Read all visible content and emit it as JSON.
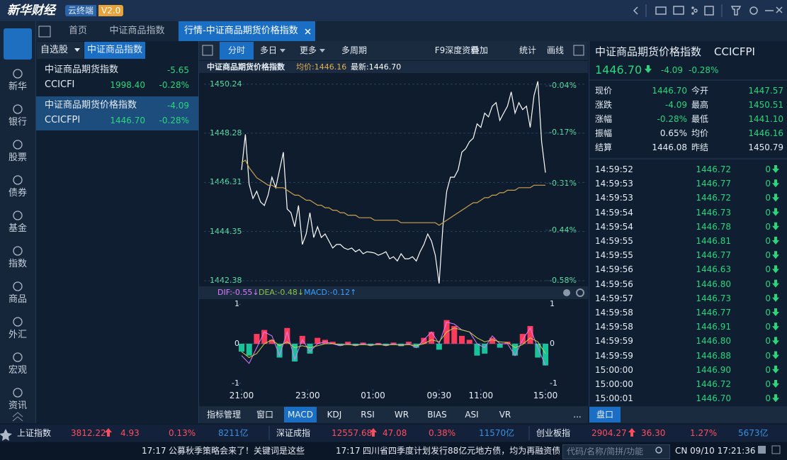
{
  "header": {
    "logo": "新华财经",
    "badge": "云终端",
    "version": "V2.0"
  },
  "tabs": [
    "首页",
    "中证商品指数",
    "行情-中证商品期货价格指数"
  ],
  "nav": {
    "logo": "新华社",
    "logo_sub": "XINHUA NEWS",
    "items": [
      "新华",
      "银行",
      "股票",
      "债券",
      "基金",
      "指数",
      "商品",
      "外汇",
      "宏观",
      "资讯"
    ]
  },
  "watchlist": {
    "tabs": [
      "自选股",
      "中证商品指数"
    ],
    "items": [
      {
        "name": "中证商品期货指数",
        "change": "-5.65",
        "code": "CCICFI",
        "price": "1998.40",
        "pct": "-0.28%"
      },
      {
        "name": "中证商品期货价格指数",
        "change": "-4.09",
        "code": "CCICFPI",
        "price": "1446.70",
        "pct": "-0.28%"
      }
    ]
  },
  "toolbar": [
    "分时",
    "多日",
    "更多",
    "多周期",
    "F9深度资料",
    "叠加",
    "统计",
    "画线"
  ],
  "chart_data": [
    {
      "type": "line",
      "title": "中证商品期货价格指数",
      "annotations": [
        {
          "text": "均价:1446.16",
          "color": "#e0b050"
        },
        {
          "text": "最新:1446.70",
          "color": "#ffffff"
        }
      ],
      "xlim": [
        0,
        80
      ],
      "ylim": [
        1442.1,
        1450.6
      ],
      "yticks": [
        1450.24,
        1448.28,
        1446.31,
        1444.35,
        1442.38
      ],
      "y2lim": [
        -0.6,
        -0.01
      ],
      "y2ticks": [
        {
          "value": -0.04,
          "label": "-0.04%"
        },
        {
          "value": -0.17,
          "label": "-0.17%"
        },
        {
          "value": -0.31,
          "label": "-0.31%"
        },
        {
          "value": -0.44,
          "label": "-0.44%"
        },
        {
          "value": -0.58,
          "label": "-0.58%"
        }
      ],
      "tick_color": "#5ee0a0",
      "grid": true,
      "series": [
        {
          "color": "#ffffff",
          "values": [
            1446.81,
            1448.23,
            1446.24,
            1445.67,
            1445.96,
            1445.53,
            1445.39,
            1445.81,
            1446.52,
            1446.1,
            1446.81,
            1447.52,
            1445.25,
            1445.1,
            1444.54,
            1445.39,
            1443.83,
            1444.25,
            1445.1,
            1444.11,
            1444.54,
            1444.11,
            1444.25,
            1443.97,
            1443.69,
            1443.83,
            1443.83,
            1443.69,
            1443.63,
            1443.69,
            1443.54,
            1443.63,
            1443.46,
            1443.54,
            1443.52,
            1443.49,
            1443.4,
            1443.46,
            1443.54,
            1443.26,
            1443.34,
            1443.17,
            1443.46,
            1443.26,
            1443.26,
            1443.34,
            1443.17,
            1443.54,
            1443.83,
            1444.25,
            1443.97,
            1443.4,
            1442.27,
            1444.54,
            1445.96,
            1446.52,
            1446.52,
            1446.81,
            1447.52,
            1447.66,
            1447.94,
            1448.08,
            1448.65,
            1448.51,
            1449.08,
            1448.93,
            1449.36,
            1449.5,
            1448.79,
            1449.08,
            1449.36,
            1449.93,
            1449.08,
            1449.5,
            1449.22,
            1449.36,
            1448.51,
            1449.79,
            1450.35,
            1447.94,
            1446.7
          ]
        },
        {
          "color": "#c9a24e",
          "values": [
            1447.1,
            1447.2,
            1446.9,
            1446.7,
            1446.5,
            1446.4,
            1446.3,
            1446.2,
            1446.2,
            1446.1,
            1446.1,
            1446.1,
            1446.0,
            1445.9,
            1445.8,
            1445.8,
            1445.7,
            1445.6,
            1445.6,
            1445.5,
            1445.4,
            1445.4,
            1445.3,
            1445.3,
            1445.2,
            1445.2,
            1445.1,
            1445.1,
            1445.0,
            1445.0,
            1445.0,
            1444.9,
            1444.9,
            1444.9,
            1444.9,
            1444.8,
            1444.8,
            1444.8,
            1444.8,
            1444.8,
            1444.8,
            1444.8,
            1444.7,
            1444.7,
            1444.7,
            1444.7,
            1444.7,
            1444.7,
            1444.7,
            1444.7,
            1444.7,
            1444.7,
            1444.6,
            1444.7,
            1444.8,
            1444.9,
            1445.0,
            1445.1,
            1445.2,
            1445.3,
            1445.4,
            1445.5,
            1445.5,
            1445.6,
            1445.7,
            1445.7,
            1445.8,
            1445.8,
            1445.9,
            1445.9,
            1446.0,
            1446.0,
            1446.0,
            1446.1,
            1446.1,
            1446.1,
            1446.1,
            1446.2,
            1446.2,
            1446.2,
            1446.2
          ]
        }
      ]
    },
    {
      "type": "macd",
      "annotations": [
        {
          "text": "DIF:-0.55↓",
          "color": "#e07bff"
        },
        {
          "text": "DEA:-0.48↓",
          "color": "#8bc34a"
        },
        {
          "text": "MACD:-0.12↑",
          "color": "#3aa0ff"
        }
      ],
      "xlim": [
        0,
        40
      ],
      "xticks": [
        {
          "value": 0,
          "label": "21:00"
        },
        {
          "value": 8.7,
          "label": "23:00"
        },
        {
          "value": 17.3,
          "label": "01:00"
        },
        {
          "value": 26,
          "label": "09:30"
        },
        {
          "value": 31.5,
          "label": "11:00"
        },
        {
          "value": 40,
          "label": "15:00"
        }
      ],
      "ylim": [
        -1.15,
        1.15
      ],
      "yticks": [
        1,
        0,
        -1
      ],
      "up_color": "#ff3b5c",
      "down_color": "#19c39a",
      "values": [
        -0.2,
        -0.3,
        0.25,
        0.35,
        0.1,
        -0.35,
        0.4,
        -0.45,
        0.2,
        -0.25,
        0.15,
        0.1,
        0.05,
        -0.05,
        0.05,
        -0.05,
        0.03,
        -0.04,
        0.02,
        -0.05,
        0.03,
        -0.06,
        0.05,
        -0.1,
        0.15,
        0.3,
        -0.15,
        0.6,
        0.45,
        0.2,
        0.1,
        -0.3,
        -0.25,
        0.15,
        -0.1,
        0.05,
        -0.3,
        0.25,
        0.45,
        -0.35,
        -0.55
      ],
      "series": [
        {
          "color": "#e07bff",
          "values": [
            -0.3,
            -0.5,
            -0.1,
            0.3,
            0.2,
            -0.3,
            0.3,
            -0.4,
            0.1,
            -0.2,
            0.0,
            0.05,
            0.0,
            -0.05,
            0.0,
            -0.05,
            0.0,
            -0.05,
            0.0,
            -0.05,
            0.0,
            -0.05,
            0.0,
            -0.1,
            0.1,
            0.3,
            0.0,
            0.55,
            0.5,
            0.35,
            0.3,
            0.0,
            -0.1,
            0.2,
            0.0,
            0.0,
            -0.3,
            0.1,
            0.4,
            -0.1,
            -0.55
          ]
        },
        {
          "color": "#c8d04a",
          "values": [
            -0.2,
            -0.35,
            -0.25,
            0.0,
            0.1,
            -0.05,
            0.05,
            -0.1,
            -0.05,
            -0.1,
            -0.05,
            0.0,
            0.0,
            -0.02,
            -0.02,
            -0.03,
            -0.02,
            -0.03,
            -0.02,
            -0.03,
            -0.02,
            -0.03,
            -0.02,
            -0.05,
            0.0,
            0.1,
            0.05,
            0.3,
            0.4,
            0.35,
            0.3,
            0.15,
            0.05,
            0.1,
            0.05,
            0.03,
            -0.1,
            -0.02,
            0.15,
            0.05,
            -0.25
          ]
        }
      ]
    }
  ],
  "indicator_tabs": [
    "指标管理",
    "窗口",
    "MACD",
    "KDJ",
    "RSI",
    "WR",
    "BIAS",
    "ASI",
    "VR",
    "..."
  ],
  "quote": {
    "name": "中证商品期货价格指数",
    "code": "CCICFPI",
    "price": "1446.70",
    "change": "-4.09",
    "pct": "-0.28%",
    "rows": [
      [
        "现价",
        "1446.70",
        "今开",
        "1447.57"
      ],
      [
        "涨跌",
        "-4.09",
        "最高",
        "1450.51"
      ],
      [
        "涨幅",
        "-0.28%",
        "最低",
        "1441.10"
      ],
      [
        "振幅",
        "0.65%",
        "均价",
        "1446.16"
      ],
      [
        "结算",
        "1446.08",
        "昨结",
        "1450.79"
      ]
    ]
  },
  "trades": [
    [
      "14:59:52",
      "1446.72",
      "0"
    ],
    [
      "14:59:53",
      "1446.77",
      "0"
    ],
    [
      "14:59:53",
      "1446.72",
      "0"
    ],
    [
      "14:59:54",
      "1446.73",
      "0"
    ],
    [
      "14:59:54",
      "1446.78",
      "0"
    ],
    [
      "14:59:55",
      "1446.81",
      "0"
    ],
    [
      "14:59:55",
      "1446.77",
      "0"
    ],
    [
      "14:59:56",
      "1446.63",
      "0"
    ],
    [
      "14:59:56",
      "1446.80",
      "0"
    ],
    [
      "14:59:57",
      "1446.73",
      "0"
    ],
    [
      "14:59:58",
      "1446.77",
      "0"
    ],
    [
      "14:59:58",
      "1446.91",
      "0"
    ],
    [
      "14:59:59",
      "1446.80",
      "0"
    ],
    [
      "14:59:59",
      "1446.88",
      "0"
    ],
    [
      "15:00:00",
      "1446.90",
      "0"
    ],
    [
      "15:00:00",
      "1446.72",
      "0"
    ],
    [
      "15:00:01",
      "1446.70",
      "0"
    ]
  ],
  "right_tab": "盘口",
  "indices": [
    {
      "name": "上证指数",
      "price": "3812.22",
      "change": "4.93",
      "pct": "0.13%",
      "volume": "8211亿"
    },
    {
      "name": "深证成指",
      "price": "12557.68",
      "change": "47.08",
      "pct": "0.38%",
      "volume": "11570亿"
    },
    {
      "name": "创业板指",
      "price": "2904.27",
      "change": "36.30",
      "pct": "1.27%",
      "volume": "5673亿"
    }
  ],
  "news": [
    {
      "time": "17:17",
      "text": "公募秋季策略会来了！关键词是这些"
    },
    {
      "time": "17:17",
      "text": "四川省四季度计划发行88亿元地方债，均为再融资债"
    }
  ],
  "search_placeholder": "代码/名称/简拼/功能",
  "clock": "CN 09/10 17:21:36"
}
